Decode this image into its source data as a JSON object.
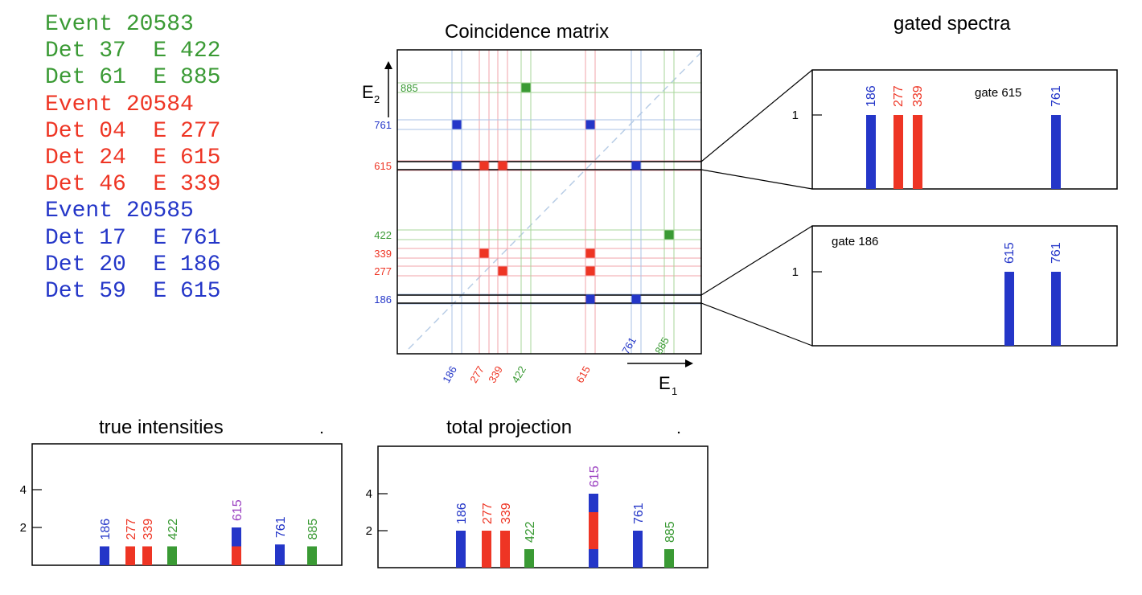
{
  "colors": {
    "blue": "#2436c8",
    "red": "#ee3524",
    "green": "#3a9a34",
    "purple": "#9a3fc0",
    "light_blue": "#a9c2e6",
    "light_red": "#f2a3a8",
    "light_green": "#a7d59a"
  },
  "event_log": [
    {
      "text": "Event 20583",
      "color": "green"
    },
    {
      "text": "Det 37  E 422",
      "color": "green"
    },
    {
      "text": "Det 61  E 885",
      "color": "green"
    },
    {
      "text": "Event 20584",
      "color": "red"
    },
    {
      "text": "Det 04  E 277",
      "color": "red"
    },
    {
      "text": "Det 24  E 615",
      "color": "red"
    },
    {
      "text": "Det 46  E 339",
      "color": "red"
    },
    {
      "text": "Event 20585",
      "color": "blue"
    },
    {
      "text": "Det 17  E 761",
      "color": "blue"
    },
    {
      "text": "Det 20  E 186",
      "color": "blue"
    },
    {
      "text": "Det 59  E 615",
      "color": "blue"
    }
  ],
  "matrix": {
    "title": "Coincidence matrix",
    "x_axis_label": "E",
    "x_axis_sub": "1",
    "y_axis_label": "E",
    "y_axis_sub": "2",
    "energies": [
      {
        "label": "186",
        "color": "blue"
      },
      {
        "label": "277",
        "color": "red"
      },
      {
        "label": "339",
        "color": "red"
      },
      {
        "label": "422",
        "color": "green"
      },
      {
        "label": "615",
        "color": "red"
      },
      {
        "label": "761",
        "color": "blue"
      },
      {
        "label": "885",
        "color": "green"
      }
    ],
    "gate_energies": [
      "615",
      "186"
    ],
    "points": [
      {
        "x": "422",
        "y": "885",
        "color": "green"
      },
      {
        "x": "186",
        "y": "761",
        "color": "blue"
      },
      {
        "x": "615",
        "y": "761",
        "color": "blue"
      },
      {
        "x": "186",
        "y": "615",
        "color": "blue"
      },
      {
        "x": "277",
        "y": "615",
        "color": "red"
      },
      {
        "x": "339",
        "y": "615",
        "color": "red"
      },
      {
        "x": "761",
        "y": "615",
        "color": "blue"
      },
      {
        "x": "885",
        "y": "422",
        "color": "green"
      },
      {
        "x": "277",
        "y": "339",
        "color": "red"
      },
      {
        "x": "615",
        "y": "339",
        "color": "red"
      },
      {
        "x": "339",
        "y": "277",
        "color": "red"
      },
      {
        "x": "615",
        "y": "277",
        "color": "red"
      },
      {
        "x": "615",
        "y": "186",
        "color": "blue"
      },
      {
        "x": "761",
        "y": "186",
        "color": "blue"
      }
    ]
  },
  "gated_title": "gated spectra",
  "gated_spectra": [
    {
      "gate_label": "gate 615",
      "y_tick": "1",
      "peaks": [
        {
          "label": "186",
          "value": 1,
          "color": "blue"
        },
        {
          "label": "277",
          "value": 1,
          "color": "red"
        },
        {
          "label": "339",
          "value": 1,
          "color": "red"
        },
        {
          "label": "761",
          "value": 1,
          "color": "blue"
        }
      ]
    },
    {
      "gate_label": "gate 186",
      "y_tick": "1",
      "peaks": [
        {
          "label": "615",
          "value": 1,
          "color": "blue"
        },
        {
          "label": "761",
          "value": 1,
          "color": "blue"
        }
      ]
    }
  ],
  "chart_data": [
    {
      "type": "bar",
      "title": "true intensities",
      "yticks": [
        2,
        4
      ],
      "categories": [
        "186",
        "277",
        "339",
        "422",
        "615",
        "761",
        "885"
      ],
      "label_colors": [
        "blue",
        "red",
        "red",
        "green",
        "purple",
        "blue",
        "green"
      ],
      "segments": [
        [
          {
            "value": 1,
            "color": "blue"
          }
        ],
        [
          {
            "value": 1,
            "color": "red"
          }
        ],
        [
          {
            "value": 1,
            "color": "red"
          }
        ],
        [
          {
            "value": 1,
            "color": "green"
          }
        ],
        [
          {
            "value": 1,
            "color": "red"
          },
          {
            "value": 1,
            "color": "blue"
          }
        ],
        [
          {
            "value": 1.1,
            "color": "blue"
          }
        ],
        [
          {
            "value": 1,
            "color": "green"
          }
        ]
      ]
    },
    {
      "type": "bar",
      "title": "total projection",
      "yticks": [
        2,
        4
      ],
      "categories": [
        "186",
        "277",
        "339",
        "422",
        "615",
        "761",
        "885"
      ],
      "label_colors": [
        "blue",
        "red",
        "red",
        "green",
        "purple",
        "blue",
        "green"
      ],
      "segments": [
        [
          {
            "value": 2,
            "color": "blue"
          }
        ],
        [
          {
            "value": 2,
            "color": "red"
          }
        ],
        [
          {
            "value": 2,
            "color": "red"
          }
        ],
        [
          {
            "value": 1,
            "color": "green"
          }
        ],
        [
          {
            "value": 1,
            "color": "blue"
          },
          {
            "value": 2,
            "color": "red"
          },
          {
            "value": 1,
            "color": "blue"
          }
        ],
        [
          {
            "value": 2,
            "color": "blue"
          }
        ],
        [
          {
            "value": 1,
            "color": "green"
          }
        ]
      ]
    }
  ]
}
